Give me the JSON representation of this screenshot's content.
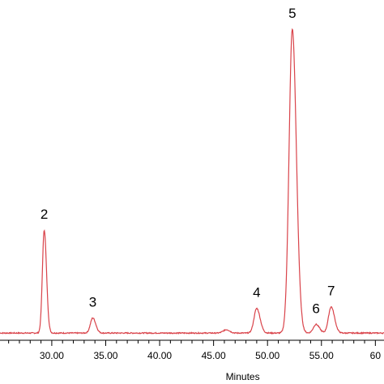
{
  "chart_data": {
    "type": "line",
    "title": "",
    "xlabel": "Minutes",
    "ylabel": "",
    "xlim": [
      25.2,
      60.8
    ],
    "ylim": [
      0,
      100
    ],
    "grid": false,
    "legend": "none",
    "line_color": "#d9434a",
    "axis_color": "#000000",
    "x_tick_labels": [
      "30.00",
      "35.00",
      "40.00",
      "45.00",
      "50.00",
      "55.00",
      "60"
    ],
    "x_tick_values": [
      30,
      35,
      40,
      45,
      50,
      55,
      60
    ],
    "baseline": 0.5,
    "peaks": [
      {
        "label": "2",
        "x": 29.3,
        "height": 33.4,
        "sigma": 0.17
      },
      {
        "label": "3",
        "x": 33.8,
        "height": 4.9,
        "sigma": 0.22
      },
      {
        "label": "4",
        "x": 49.0,
        "height": 8.0,
        "sigma": 0.25
      },
      {
        "label": "5",
        "x": 52.3,
        "height": 98.5,
        "sigma": 0.3
      },
      {
        "label": "6",
        "x": 54.5,
        "height": 2.8,
        "sigma": 0.25
      },
      {
        "label": "7",
        "x": 55.9,
        "height": 8.5,
        "sigma": 0.25
      }
    ],
    "minor_bumps": [
      {
        "x": 46.2,
        "height": 1.1,
        "sigma": 0.3
      }
    ]
  }
}
